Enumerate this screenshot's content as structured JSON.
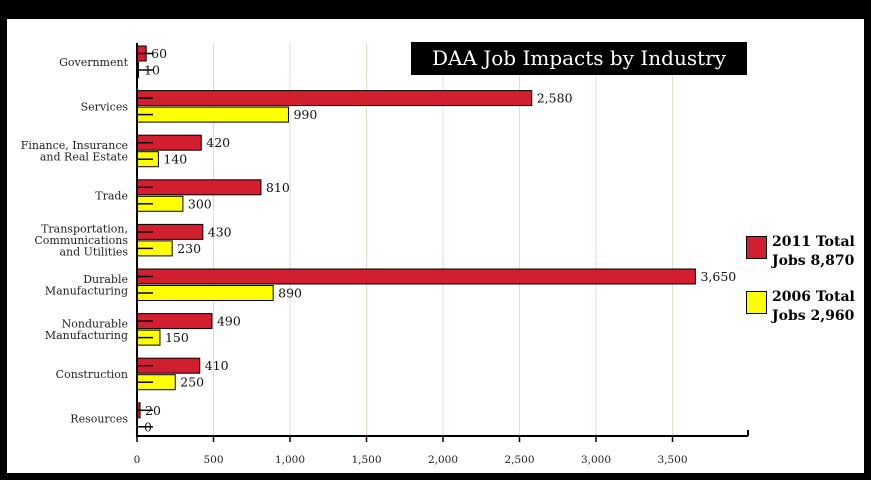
{
  "chart_data": {
    "type": "bar",
    "orientation": "horizontal",
    "title": "DAA Job Impacts by Industry",
    "categories": [
      "Government",
      "Services",
      "Finance, Insurance\nand Real Estate",
      "Trade",
      "Transportation,\nCommunications\nand Utilities",
      "Durable\nManufacturing",
      "Nondurable\nManufacturing",
      "Construction",
      "Resources"
    ],
    "series": [
      {
        "name": "2011 Total Jobs 8,870",
        "color": "#d11f2f",
        "values": [
          60,
          2580,
          420,
          810,
          430,
          3650,
          490,
          410,
          20
        ],
        "labels": [
          "60",
          "2,580",
          "420",
          "810",
          "430",
          "3,650",
          "490",
          "410",
          "20"
        ]
      },
      {
        "name": "2006 Total Jobs 2,960",
        "color": "#ffff00",
        "values": [
          10,
          990,
          140,
          300,
          230,
          890,
          150,
          250,
          0
        ],
        "labels": [
          "10",
          "990",
          "140",
          "300",
          "230",
          "890",
          "150",
          "250",
          "0"
        ]
      }
    ],
    "xlim": [
      0,
      4000
    ],
    "xticks": [
      0,
      500,
      1000,
      1500,
      2000,
      2500,
      3000,
      3500
    ],
    "xtick_labels": [
      "0",
      "500",
      "1,000",
      "1,500",
      "2,000",
      "2,500",
      "3,000",
      "3,500"
    ],
    "grid": "vertical",
    "legend_position": "right"
  },
  "legend": {
    "line1_2011": "2011 Total",
    "line2_2011": "Jobs 8,870",
    "line1_2006": "2006 Total",
    "line2_2006": "Jobs 2,960"
  }
}
